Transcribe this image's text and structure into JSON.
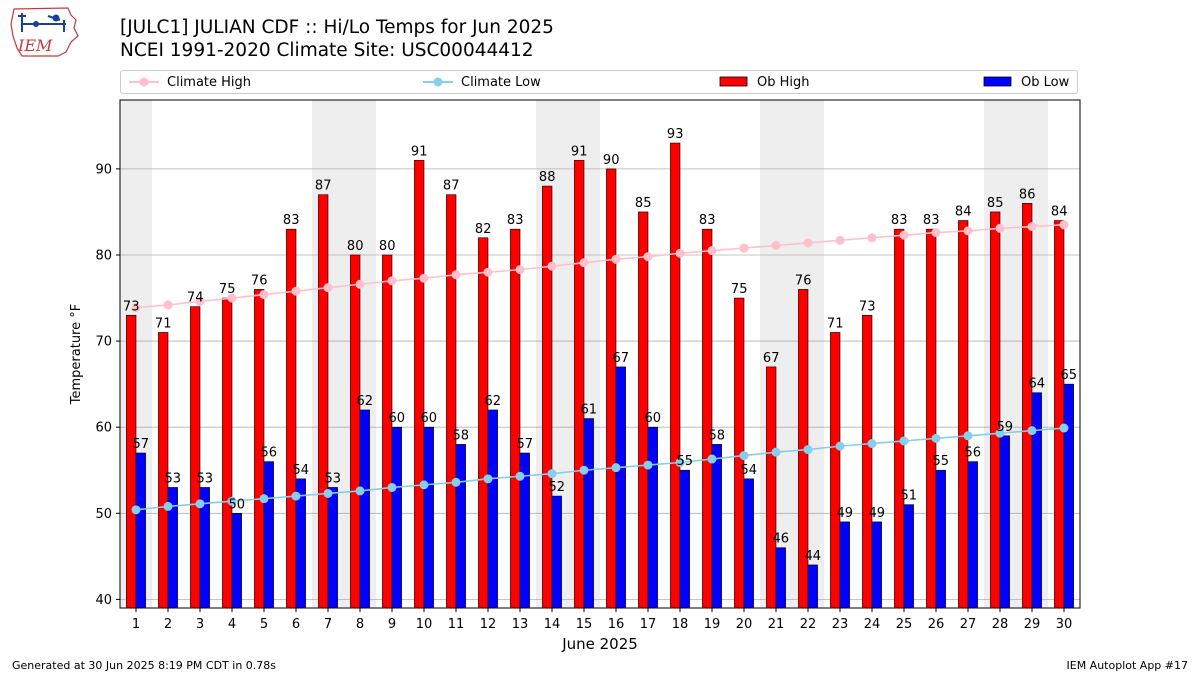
{
  "title_line1": "[JULC1] JULIAN CDF :: Hi/Lo Temps for Jun 2025",
  "title_line2": "NCEI 1991-2020 Climate Site: USC00044412",
  "logo_text": "IEM",
  "footer_left": "Generated at 30 Jun 2025 8:19 PM CDT in 0.78s",
  "footer_right": "IEM Autoplot App #17",
  "colors": {
    "ob_high": "#ff0000",
    "ob_low": "#0000ff",
    "climate_high": "#ffc0cb",
    "climate_low": "#87ceeb",
    "weekend_band": "#eeeeee",
    "grid": "#b0b0b0"
  },
  "legend": {
    "climate_high": "Climate High",
    "climate_low": "Climate Low",
    "ob_high": "Ob High",
    "ob_low": "Ob Low"
  },
  "chart_data": {
    "type": "bar",
    "xlabel": "June 2025",
    "ylabel": "Temperature °F",
    "ylim": [
      39,
      98
    ],
    "yticks": [
      40,
      50,
      60,
      70,
      80,
      90
    ],
    "grid": true,
    "legend_position": "top",
    "categories": [
      1,
      2,
      3,
      4,
      5,
      6,
      7,
      8,
      9,
      10,
      11,
      12,
      13,
      14,
      15,
      16,
      17,
      18,
      19,
      20,
      21,
      22,
      23,
      24,
      25,
      26,
      27,
      28,
      29,
      30
    ],
    "shaded_days": [
      1,
      7,
      8,
      14,
      15,
      21,
      22,
      28,
      29
    ],
    "series": [
      {
        "name": "Ob High",
        "kind": "bar",
        "values": [
          73,
          71,
          74,
          75,
          76,
          83,
          87,
          80,
          80,
          91,
          87,
          82,
          83,
          88,
          91,
          90,
          85,
          93,
          83,
          75,
          67,
          76,
          71,
          73,
          83,
          83,
          84,
          85,
          86,
          84
        ]
      },
      {
        "name": "Ob Low",
        "kind": "bar",
        "values": [
          57,
          53,
          53,
          50,
          56,
          54,
          53,
          62,
          60,
          60,
          58,
          62,
          57,
          52,
          61,
          67,
          60,
          55,
          58,
          54,
          46,
          44,
          49,
          49,
          51,
          55,
          56,
          59,
          64,
          65
        ]
      },
      {
        "name": "Climate High",
        "kind": "line",
        "values": [
          73.9,
          74.2,
          74.6,
          75.0,
          75.4,
          75.8,
          76.2,
          76.6,
          77.0,
          77.3,
          77.7,
          78.0,
          78.3,
          78.7,
          79.1,
          79.5,
          79.8,
          80.2,
          80.5,
          80.8,
          81.1,
          81.4,
          81.7,
          82.0,
          82.3,
          82.6,
          82.8,
          83.1,
          83.3,
          83.5
        ]
      },
      {
        "name": "Climate Low",
        "kind": "line",
        "values": [
          50.4,
          50.8,
          51.1,
          51.4,
          51.7,
          52.0,
          52.3,
          52.6,
          53.0,
          53.3,
          53.6,
          54.0,
          54.3,
          54.6,
          55.0,
          55.3,
          55.6,
          55.9,
          56.3,
          56.7,
          57.1,
          57.4,
          57.8,
          58.1,
          58.4,
          58.7,
          59.0,
          59.3,
          59.6,
          59.9
        ]
      }
    ]
  }
}
